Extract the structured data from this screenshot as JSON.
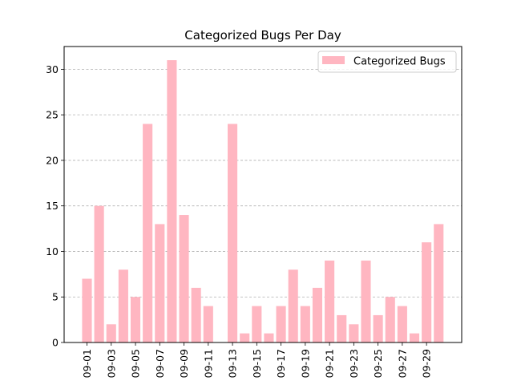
{
  "chart_data": {
    "type": "bar",
    "title": "Categorized Bugs Per Day",
    "xlabel": "",
    "ylabel": "",
    "categories": [
      "09-01",
      "09-02",
      "09-03",
      "09-04",
      "09-05",
      "09-06",
      "09-07",
      "09-08",
      "09-09",
      "09-10",
      "09-11",
      "09-12",
      "09-13",
      "09-14",
      "09-15",
      "09-16",
      "09-17",
      "09-18",
      "09-19",
      "09-20",
      "09-21",
      "09-22",
      "09-23",
      "09-24",
      "09-25",
      "09-26",
      "09-27",
      "09-28",
      "09-29",
      "09-30"
    ],
    "tick_labels": [
      "09-01",
      "09-03",
      "09-05",
      "09-07",
      "09-09",
      "09-11",
      "09-13",
      "09-15",
      "09-17",
      "09-19",
      "09-21",
      "09-23",
      "09-25",
      "09-27",
      "09-29"
    ],
    "series": [
      {
        "name": "Categorized Bugs",
        "values": [
          7,
          15,
          2,
          8,
          5,
          24,
          13,
          31,
          14,
          6,
          4,
          0,
          24,
          1,
          4,
          1,
          4,
          8,
          4,
          6,
          9,
          3,
          2,
          9,
          3,
          5,
          4,
          1,
          11,
          13
        ]
      }
    ],
    "ylim": [
      0,
      32.5
    ],
    "yticks": [
      0,
      5,
      10,
      15,
      20,
      25,
      30
    ],
    "grid": "y-dashed",
    "legend": "top-right",
    "bar_color": "#ffb6c1"
  }
}
